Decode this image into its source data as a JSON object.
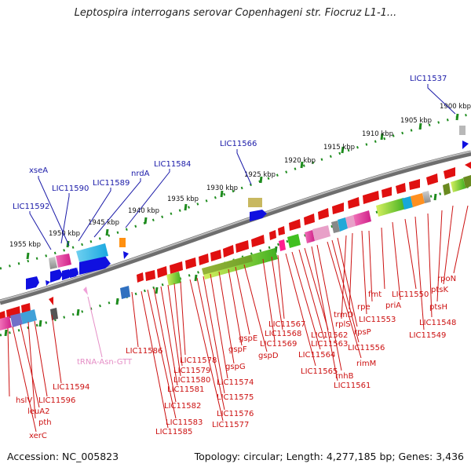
{
  "title": "Leptospira interrogans serovar Copenhageni str. Fiocruz L1-1...",
  "footer": {
    "accession": "Accession: NC_005823",
    "summary": "Topology: circular; Length: 4,277,185 bp; Genes: 3,436"
  },
  "colors": {
    "backbone": "#8a8a8a",
    "tick": "#1e8c1e",
    "forward_gene": "#1010e0",
    "reverse_gene": "#e01010",
    "blue_label": "#1a1aa8",
    "red_label": "#cc1111",
    "trna_label": "#e58ec6"
  },
  "kbp_ticks": [
    {
      "label": "1900 kbp"
    },
    {
      "label": "1905 kbp"
    },
    {
      "label": "1910 kbp"
    },
    {
      "label": "1915 kbp"
    },
    {
      "label": "1920 kbp"
    },
    {
      "label": "1925 kbp"
    },
    {
      "label": "1930 kbp"
    },
    {
      "label": "1935 kbp"
    },
    {
      "label": "1940 kbp"
    },
    {
      "label": "1945 kbp"
    },
    {
      "label": "1950 kbp"
    },
    {
      "label": "1955 kbp"
    }
  ],
  "forward_labels": [
    {
      "text": "LIC11537"
    },
    {
      "text": "LIC11566"
    },
    {
      "text": "LIC11584"
    },
    {
      "text": "nrdA"
    },
    {
      "text": "LIC11589"
    },
    {
      "text": "LIC11590"
    },
    {
      "text": "xseA"
    },
    {
      "text": "LIC11592"
    }
  ],
  "reverse_labels": [
    {
      "text": "rpoN"
    },
    {
      "text": "ptsK"
    },
    {
      "text": "ptsH"
    },
    {
      "text": "LIC11548"
    },
    {
      "text": "LIC11549"
    },
    {
      "text": "LIC11550"
    },
    {
      "text": "priA"
    },
    {
      "text": "fmt"
    },
    {
      "text": "rpe"
    },
    {
      "text": "LIC11553"
    },
    {
      "text": "trmD"
    },
    {
      "text": "rplS"
    },
    {
      "text": "rpsP"
    },
    {
      "text": "LIC11556"
    },
    {
      "text": "rimM"
    },
    {
      "text": "rnhB"
    },
    {
      "text": "LIC11561"
    },
    {
      "text": "LIC11562"
    },
    {
      "text": "LIC11563"
    },
    {
      "text": "LIC11564"
    },
    {
      "text": "LIC11565"
    },
    {
      "text": "LIC11567"
    },
    {
      "text": "LIC11568"
    },
    {
      "text": "LIC11569"
    },
    {
      "text": "gspD"
    },
    {
      "text": "gspE"
    },
    {
      "text": "gspF"
    },
    {
      "text": "gspG"
    },
    {
      "text": "LIC11574"
    },
    {
      "text": "LIC11575"
    },
    {
      "text": "LIC11576"
    },
    {
      "text": "LIC11577"
    },
    {
      "text": "LIC11578"
    },
    {
      "text": "LIC11579"
    },
    {
      "text": "LIC11580"
    },
    {
      "text": "LIC11581"
    },
    {
      "text": "LIC11582"
    },
    {
      "text": "LIC11583"
    },
    {
      "text": "LIC11585"
    },
    {
      "text": "LIC11586"
    },
    {
      "text": "LIC11594"
    },
    {
      "text": "LIC11596"
    },
    {
      "text": "hslV"
    },
    {
      "text": "leuA2"
    },
    {
      "text": "pth"
    },
    {
      "text": "xerC"
    }
  ],
  "trna_label": {
    "text": "tRNA-Asn-GTT"
  }
}
